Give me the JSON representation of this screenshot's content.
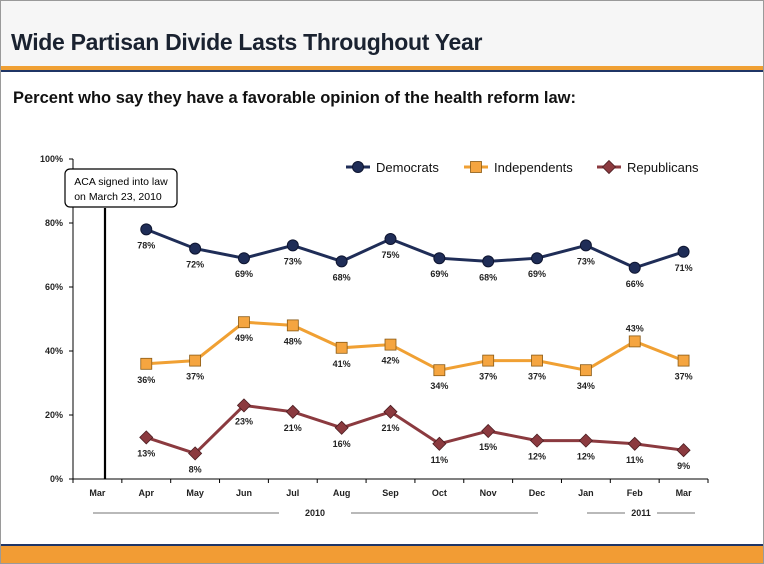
{
  "slide": {
    "title": "Wide Partisan Divide Lasts Throughout Year",
    "subtitle": "Percent who say they have a favorable opinion of the health reform law:"
  },
  "annotation": {
    "line1": "ACA signed into law",
    "line2": "on March 23, 2010",
    "x_category": "Mar"
  },
  "year_labels": [
    "2010",
    "2011"
  ],
  "colors": {
    "title_bar_rule": "#1f3566",
    "accent_stripe": "#f0a033",
    "democrats": "#1f2d57",
    "independents": "#f0a033",
    "republicans": "#8b3a3f"
  },
  "chart_data": {
    "type": "line",
    "categories": [
      "Mar",
      "Apr",
      "May",
      "Jun",
      "Jul",
      "Aug",
      "Sep",
      "Oct",
      "Nov",
      "Dec",
      "Jan",
      "Feb",
      "Mar"
    ],
    "ylim": [
      0,
      100
    ],
    "yticks": [
      "0%",
      "20%",
      "40%",
      "60%",
      "80%",
      "100%"
    ],
    "legend_position": "top-right",
    "series": [
      {
        "name": "Democrats",
        "marker": "circle",
        "values": [
          null,
          78,
          72,
          69,
          73,
          68,
          75,
          69,
          68,
          69,
          73,
          66,
          71
        ],
        "labels": [
          null,
          "78%",
          "72%",
          "69%",
          "73%",
          "68%",
          "75%",
          "69%",
          "68%",
          "69%",
          "73%",
          "66%",
          "71%"
        ]
      },
      {
        "name": "Independents",
        "marker": "square",
        "values": [
          null,
          36,
          37,
          49,
          48,
          41,
          42,
          34,
          37,
          37,
          34,
          43,
          37
        ],
        "labels": [
          null,
          "36%",
          "37%",
          "49%",
          "48%",
          "41%",
          "42%",
          "34%",
          "37%",
          "37%",
          "34%",
          "43%",
          "37%"
        ]
      },
      {
        "name": "Republicans",
        "marker": "diamond",
        "values": [
          null,
          13,
          8,
          23,
          21,
          16,
          21,
          11,
          15,
          12,
          12,
          11,
          9
        ],
        "labels": [
          null,
          "13%",
          "8%",
          "23%",
          "21%",
          "16%",
          "21%",
          "11%",
          "15%",
          "12%",
          "12%",
          "11%",
          "9%"
        ]
      }
    ]
  }
}
